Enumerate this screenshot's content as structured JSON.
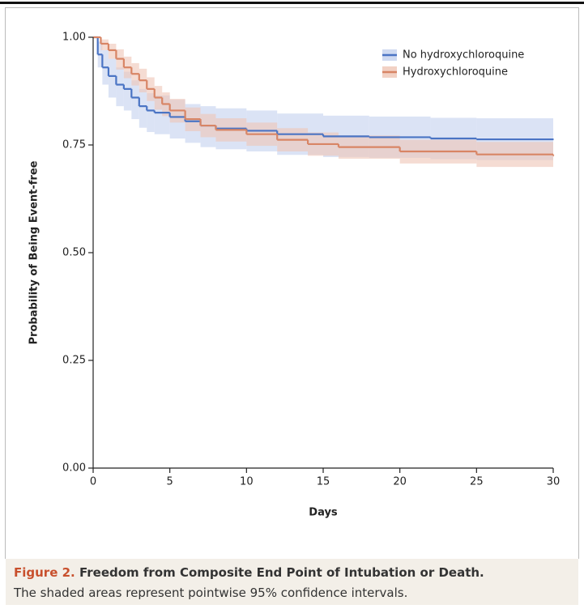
{
  "chart_data": {
    "type": "step",
    "x_label": "Days",
    "y_label": "Probability of Being Event-free",
    "xlim": [
      0,
      30
    ],
    "ylim": [
      0,
      1
    ],
    "xticks": [
      0,
      5,
      10,
      15,
      20,
      25,
      30
    ],
    "yticks": [
      {
        "value": 0,
        "label": "0.00"
      },
      0.25,
      {
        "value": 0.5,
        "label": "0.50"
      },
      0.75,
      {
        "value": 1,
        "label": "1.00"
      }
    ],
    "legend": "upper right",
    "series": [
      {
        "name": "No hydroxychloroquine",
        "color": "#4a74c4",
        "band_color": "#c3d1ee",
        "x": [
          0,
          0.3,
          0.6,
          1,
          1.5,
          2,
          2.5,
          3,
          3.5,
          4,
          5,
          6,
          7,
          8,
          10,
          12,
          15,
          18,
          22,
          25,
          30
        ],
        "values": [
          1,
          0.96,
          0.93,
          0.91,
          0.89,
          0.88,
          0.86,
          0.84,
          0.83,
          0.825,
          0.815,
          0.805,
          0.795,
          0.788,
          0.783,
          0.775,
          0.77,
          0.768,
          0.765,
          0.763,
          0.763
        ],
        "lower": [
          1,
          0.93,
          0.89,
          0.86,
          0.84,
          0.83,
          0.81,
          0.79,
          0.78,
          0.775,
          0.765,
          0.755,
          0.745,
          0.74,
          0.735,
          0.727,
          0.722,
          0.72,
          0.717,
          0.715,
          0.715
        ],
        "upper": [
          1,
          0.99,
          0.97,
          0.95,
          0.93,
          0.92,
          0.9,
          0.88,
          0.87,
          0.865,
          0.855,
          0.845,
          0.84,
          0.835,
          0.83,
          0.823,
          0.818,
          0.816,
          0.813,
          0.812,
          0.812
        ]
      },
      {
        "name": "Hydroxychloroquine",
        "color": "#d88565",
        "band_color": "#efc5b5",
        "x": [
          0,
          0.5,
          1,
          1.5,
          2,
          2.5,
          3,
          3.5,
          4,
          4.5,
          5,
          6,
          7,
          8,
          10,
          12,
          14,
          16,
          20,
          25,
          30
        ],
        "values": [
          1,
          0.985,
          0.97,
          0.95,
          0.93,
          0.915,
          0.9,
          0.88,
          0.86,
          0.845,
          0.83,
          0.81,
          0.795,
          0.785,
          0.775,
          0.762,
          0.752,
          0.745,
          0.735,
          0.728,
          0.725
        ],
        "lower": [
          1,
          0.97,
          0.95,
          0.925,
          0.905,
          0.888,
          0.872,
          0.852,
          0.832,
          0.817,
          0.802,
          0.782,
          0.768,
          0.758,
          0.748,
          0.735,
          0.725,
          0.718,
          0.707,
          0.699,
          0.695
        ],
        "upper": [
          1,
          0.995,
          0.985,
          0.972,
          0.955,
          0.94,
          0.927,
          0.907,
          0.887,
          0.872,
          0.857,
          0.837,
          0.822,
          0.812,
          0.802,
          0.789,
          0.779,
          0.772,
          0.762,
          0.757,
          0.755
        ]
      }
    ],
    "caption": {
      "label": "Figure 2.",
      "title": "Freedom from Composite End Point of Intubation or Death.",
      "text": "The shaded areas represent pointwise 95% confidence intervals."
    }
  }
}
